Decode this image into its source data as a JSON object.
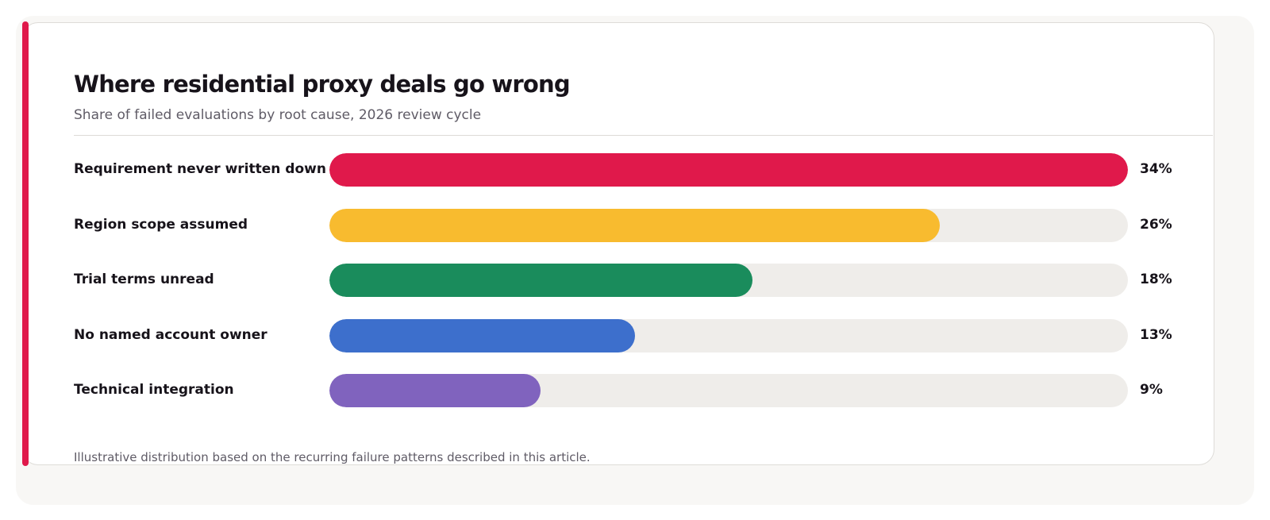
{
  "colors": {
    "accent": "#e0194b",
    "track": "#efedea"
  },
  "chart_data": {
    "type": "bar",
    "orientation": "horizontal",
    "title": "Where residential proxy deals go wrong",
    "subtitle": "Share of failed evaluations by root cause, 2026 review cycle",
    "footnote": "Illustrative distribution based on the recurring failure patterns described in this article.",
    "xlim": [
      0,
      34
    ],
    "grid": false,
    "legend": "none",
    "categories": [
      "Requirement never written down",
      "Region scope assumed",
      "Trial terms unread",
      "No named account owner",
      "Technical integration"
    ],
    "values": [
      34,
      26,
      18,
      13,
      9
    ],
    "value_labels": [
      "34%",
      "26%",
      "18%",
      "13%",
      "9%"
    ],
    "colors": [
      "#e0194b",
      "#f8bb2f",
      "#1a8c5c",
      "#3d6fcc",
      "#8063be"
    ]
  }
}
